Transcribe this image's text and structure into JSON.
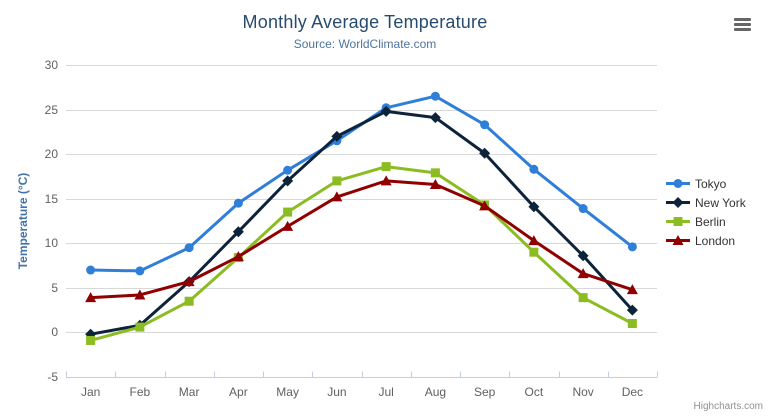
{
  "chart_data": {
    "type": "line",
    "title": "Monthly Average Temperature",
    "subtitle": "Source: WorldClimate.com",
    "xlabel": "",
    "ylabel": "Temperature (°C)",
    "ylim": [
      -5,
      30
    ],
    "yticks": [
      -5,
      0,
      5,
      10,
      15,
      20,
      25,
      30
    ],
    "grid": "horizontal",
    "legend_position": "right",
    "categories": [
      "Jan",
      "Feb",
      "Mar",
      "Apr",
      "May",
      "Jun",
      "Jul",
      "Aug",
      "Sep",
      "Oct",
      "Nov",
      "Dec"
    ],
    "series": [
      {
        "name": "Tokyo",
        "color": "#2f7ed8",
        "marker": "circle",
        "values": [
          7.0,
          6.9,
          9.5,
          14.5,
          18.2,
          21.5,
          25.2,
          26.5,
          23.3,
          18.3,
          13.9,
          9.6
        ]
      },
      {
        "name": "New York",
        "color": "#0d233a",
        "marker": "diamond",
        "values": [
          -0.2,
          0.8,
          5.7,
          11.3,
          17.0,
          22.0,
          24.8,
          24.1,
          20.1,
          14.1,
          8.6,
          2.5
        ]
      },
      {
        "name": "Berlin",
        "color": "#8bbc21",
        "marker": "square",
        "values": [
          -0.9,
          0.6,
          3.5,
          8.4,
          13.5,
          17.0,
          18.6,
          17.9,
          14.3,
          9.0,
          3.9,
          1.0
        ]
      },
      {
        "name": "London",
        "color": "#910000",
        "marker": "triangle",
        "values": [
          3.9,
          4.2,
          5.7,
          8.5,
          11.9,
          15.2,
          17.0,
          16.6,
          14.2,
          10.3,
          6.6,
          4.8
        ]
      }
    ],
    "credit": "Highcharts.com"
  },
  "export_menu": {
    "icon": "hamburger-menu-icon"
  },
  "colors": {
    "title": "#274b6d",
    "subtitle": "#4d759e",
    "axis_labels": "#606060",
    "axis_line": "#c0d0e0",
    "gridline": "#d8d8d8",
    "legend_text": "#333333"
  }
}
